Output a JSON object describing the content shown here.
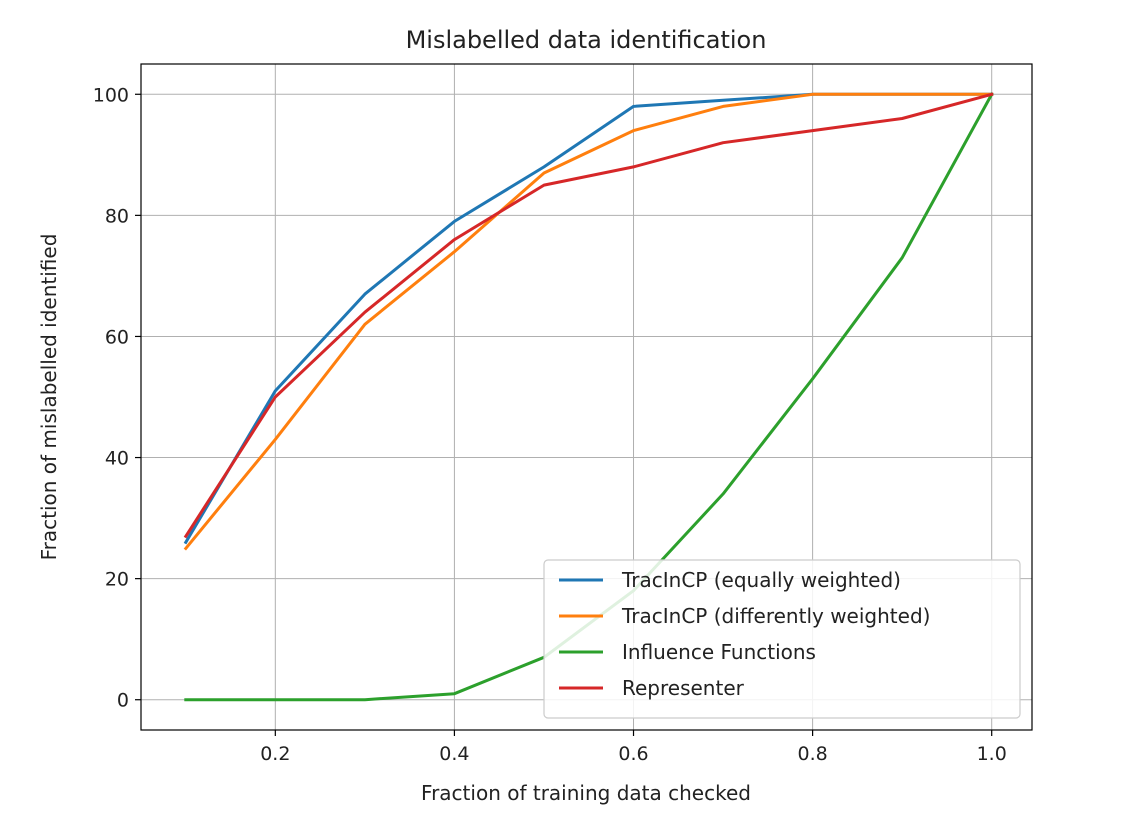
{
  "chart_data": {
    "type": "line",
    "title": "Mislabelled data identification",
    "xlabel": "Fraction of training data checked",
    "ylabel": "Fraction of mislabelled identified",
    "xlim": [
      0.05,
      1.045
    ],
    "ylim": [
      -5,
      105
    ],
    "xticks": [
      0.2,
      0.4,
      0.6,
      0.8,
      1.0
    ],
    "xtick_labels": [
      "0.2",
      "0.4",
      "0.6",
      "0.8",
      "1.0"
    ],
    "yticks": [
      0,
      20,
      40,
      60,
      80,
      100
    ],
    "ytick_labels": [
      "0",
      "20",
      "40",
      "60",
      "80",
      "100"
    ],
    "grid": true,
    "legend_position": "bottom-right",
    "x": [
      0.1,
      0.2,
      0.3,
      0.4,
      0.5,
      0.6,
      0.7,
      0.8,
      0.9,
      1.0
    ],
    "series": [
      {
        "name": "TracInCP (equally weighted)",
        "color": "#1f77b4",
        "values": [
          26,
          51,
          67,
          79,
          88,
          98,
          99,
          100,
          100,
          100
        ]
      },
      {
        "name": "TracInCP (differently weighted)",
        "color": "#ff7f0e",
        "values": [
          25,
          43,
          62,
          74,
          87,
          94,
          98,
          100,
          100,
          100
        ]
      },
      {
        "name": "Influence Functions",
        "color": "#2ca02c",
        "values": [
          0,
          0,
          0,
          1,
          7,
          18,
          34,
          53,
          73,
          100
        ]
      },
      {
        "name": "Representer",
        "color": "#d62728",
        "values": [
          27,
          50,
          64,
          76,
          85,
          88,
          92,
          94,
          96,
          100
        ]
      }
    ]
  }
}
